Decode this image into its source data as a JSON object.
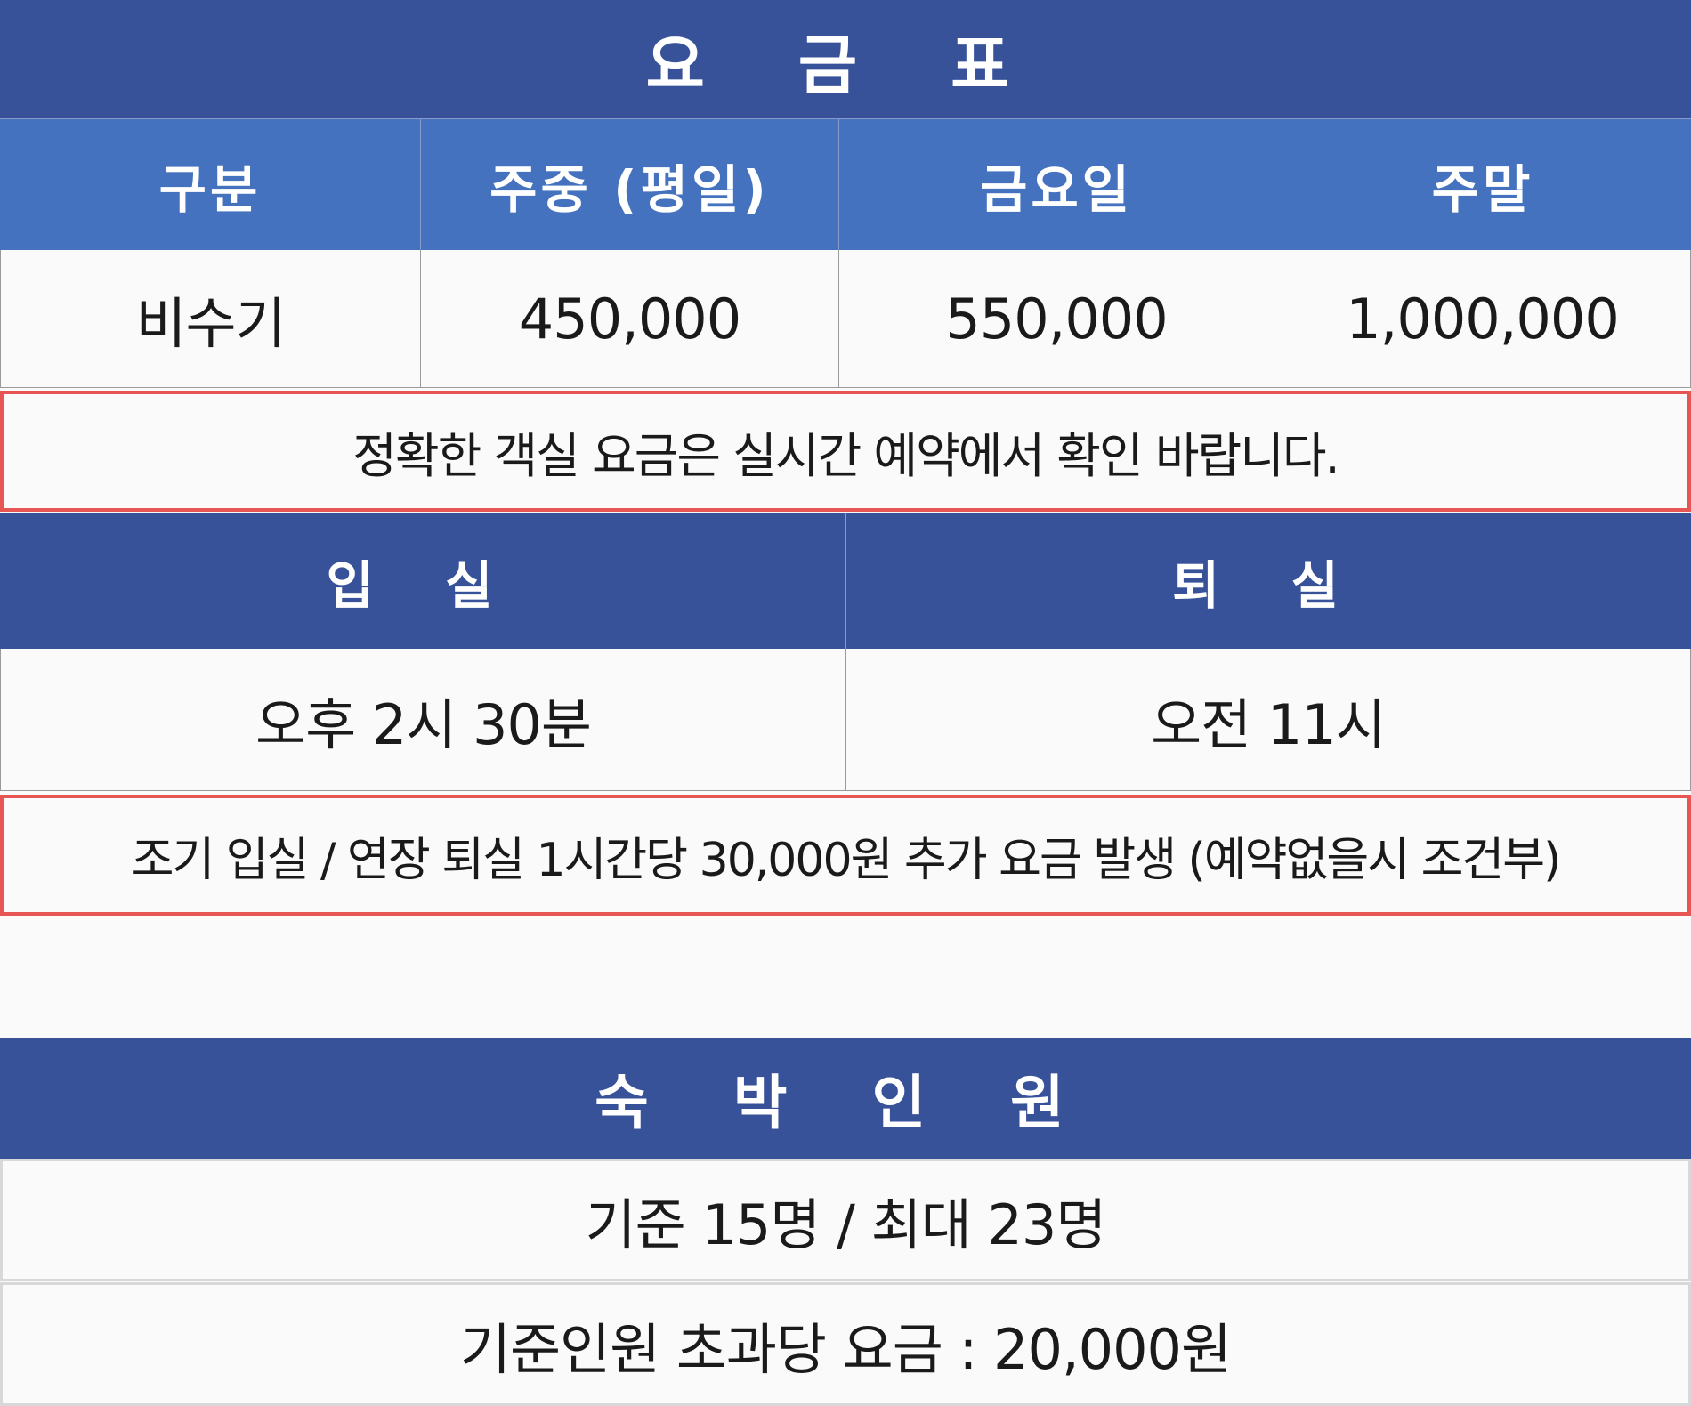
{
  "rates": {
    "title": "요 금 표",
    "headers": [
      "구분",
      "주중 (평일)",
      "금요일",
      "주말"
    ],
    "row": [
      "비수기",
      "450,000",
      "550,000",
      "1,000,000"
    ],
    "note": "정확한 객실 요금은 실시간 예약에서 확인 바랍니다."
  },
  "times": {
    "checkin_label": "입 실",
    "checkout_label": "퇴 실",
    "checkin": "오후 2시 30분",
    "checkout": "오전 11시",
    "note": "조기 입실 / 연장 퇴실 1시간당 30,000원 추가 요금 발생 (예약없을시 조건부)"
  },
  "occupancy": {
    "title": "숙 박 인 원",
    "capacity": "기준 15명 /  최대 23명",
    "extra_fee": "기준인원 초과당 요금 : 20,000원"
  },
  "colors": {
    "navy": "#38529a",
    "blue": "#4472bf",
    "red": "#e85555"
  }
}
